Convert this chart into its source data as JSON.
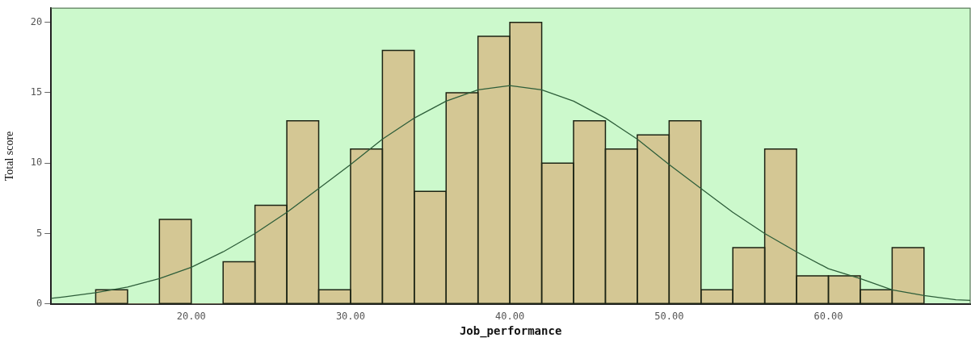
{
  "chart_data": {
    "type": "histogram",
    "xlabel": "Job_performance",
    "ylabel": "Total score",
    "bins": [
      14,
      16,
      18,
      20,
      22,
      24,
      26,
      28,
      30,
      32,
      34,
      36,
      38,
      40,
      42,
      44,
      46,
      48,
      50,
      52,
      54,
      56,
      58,
      60,
      62,
      64,
      66
    ],
    "values": [
      1,
      0,
      6,
      0,
      3,
      7,
      13,
      1,
      11,
      18,
      8,
      15,
      19,
      20,
      10,
      13,
      11,
      12,
      13,
      1,
      4,
      11,
      2,
      2,
      1,
      4
    ],
    "color": "#d4c794",
    "series": [
      {
        "type": "line",
        "color": "#2e5e3a",
        "x": [
          11.2,
          12,
          14,
          16,
          18,
          20,
          22,
          24,
          26,
          28,
          30,
          32,
          34,
          36,
          38,
          40,
          42,
          44,
          46,
          48,
          50,
          52,
          54,
          56,
          58,
          60,
          62,
          64,
          66,
          68,
          68.9
        ],
        "values": [
          0.4,
          0.5,
          0.8,
          1.2,
          1.8,
          2.6,
          3.7,
          5.0,
          6.5,
          8.2,
          9.9,
          11.7,
          13.2,
          14.4,
          15.2,
          15.5,
          15.2,
          14.4,
          13.2,
          11.7,
          9.9,
          8.2,
          6.5,
          5.0,
          3.7,
          2.5,
          1.8,
          1.0,
          0.6,
          0.3,
          0.25
        ]
      }
    ],
    "xlim": [
      11.2,
      68.9
    ],
    "xticks": [
      {
        "value": 20,
        "label": "20.00"
      },
      {
        "value": 30,
        "label": "30.00"
      },
      {
        "value": 40,
        "label": "40.00"
      },
      {
        "value": 50,
        "label": "50.00"
      },
      {
        "value": 60,
        "label": "60.00"
      }
    ],
    "ylim": [
      0,
      21
    ],
    "yticks": [
      0,
      5,
      10,
      15,
      20
    ],
    "grid": false,
    "legend": false,
    "marker": "none",
    "line_style": "solid"
  }
}
